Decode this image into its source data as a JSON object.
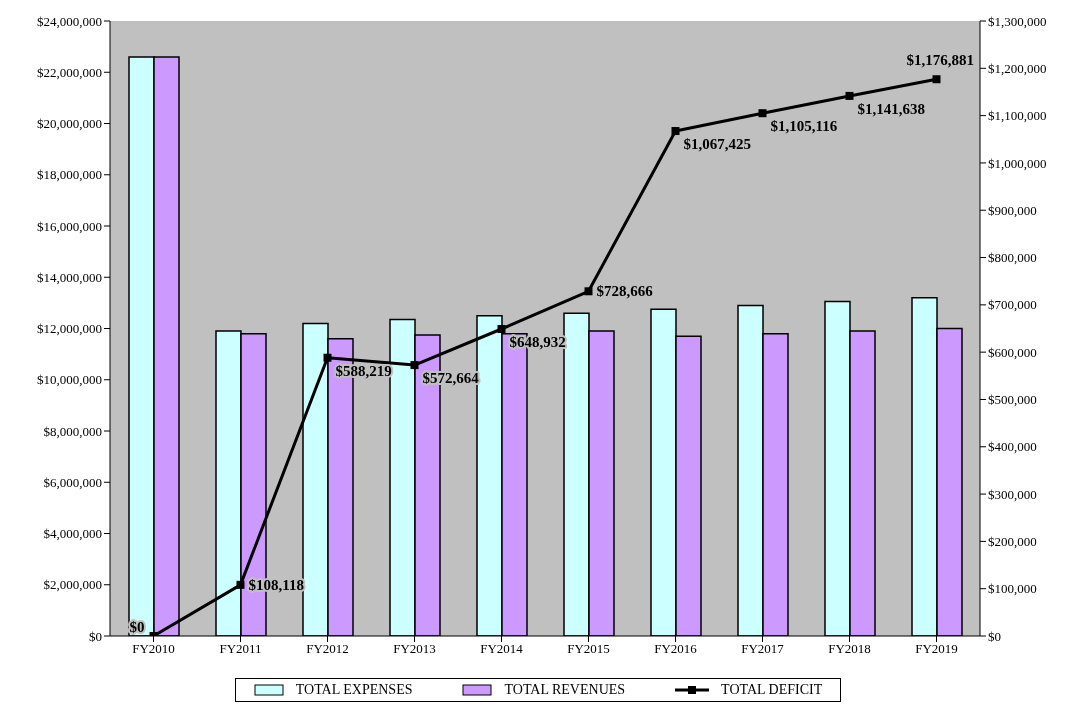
{
  "chart_data": {
    "type": "bar",
    "categories": [
      "FY2010",
      "FY2011",
      "FY2012",
      "FY2013",
      "FY2014",
      "FY2015",
      "FY2016",
      "FY2017",
      "FY2018",
      "FY2019"
    ],
    "series": [
      {
        "name": "TOTAL EXPENSES",
        "color": "#ccffff",
        "values": [
          22600000,
          11900000,
          12200000,
          12350000,
          12500000,
          12600000,
          12750000,
          12900000,
          13050000,
          13200000
        ]
      },
      {
        "name": "TOTAL REVENUES",
        "color": "#cc99ff",
        "values": [
          22600000,
          11800000,
          11600000,
          11750000,
          11800000,
          11900000,
          11700000,
          11800000,
          11900000,
          12000000
        ]
      },
      {
        "name": "TOTAL DEFICIT",
        "type": "line",
        "axis": "y2",
        "color": "#000000",
        "marker": "square",
        "values": [
          0,
          108118,
          588219,
          572664,
          648932,
          728666,
          1067425,
          1105116,
          1141638,
          1176881
        ],
        "value_labels": [
          "$0",
          "$108,118",
          "$588,219",
          "$572,664",
          "$648,932",
          "$728,666",
          "$1,067,425",
          "$1,105,116",
          "$1,141,638",
          "$1,176,881"
        ]
      }
    ],
    "ylim": [
      0,
      24000000
    ],
    "yticks": [
      {
        "value": 0,
        "label": "$0"
      },
      {
        "value": 2000000,
        "label": "$2,000,000"
      },
      {
        "value": 4000000,
        "label": "$4,000,000"
      },
      {
        "value": 6000000,
        "label": "$6,000,000"
      },
      {
        "value": 8000000,
        "label": "$8,000,000"
      },
      {
        "value": 10000000,
        "label": "$10,000,000"
      },
      {
        "value": 12000000,
        "label": "$12,000,000"
      },
      {
        "value": 14000000,
        "label": "$14,000,000"
      },
      {
        "value": 16000000,
        "label": "$16,000,000"
      },
      {
        "value": 18000000,
        "label": "$18,000,000"
      },
      {
        "value": 20000000,
        "label": "$20,000,000"
      },
      {
        "value": 22000000,
        "label": "$22,000,000"
      },
      {
        "value": 24000000,
        "label": "$24,000,000"
      }
    ],
    "y2lim": [
      0,
      1300000
    ],
    "y2ticks": [
      {
        "value": 0,
        "label": "$0"
      },
      {
        "value": 100000,
        "label": "$100,000"
      },
      {
        "value": 200000,
        "label": "$200,000"
      },
      {
        "value": 300000,
        "label": "$300,000"
      },
      {
        "value": 400000,
        "label": "$400,000"
      },
      {
        "value": 500000,
        "label": "$500,000"
      },
      {
        "value": 600000,
        "label": "$600,000"
      },
      {
        "value": 700000,
        "label": "$700,000"
      },
      {
        "value": 800000,
        "label": "$800,000"
      },
      {
        "value": 900000,
        "label": "$900,000"
      },
      {
        "value": 1000000,
        "label": "$1,000,000"
      },
      {
        "value": 1100000,
        "label": "$1,100,000"
      },
      {
        "value": 1200000,
        "label": "$1,200,000"
      },
      {
        "value": 1300000,
        "label": "$1,300,000"
      }
    ],
    "grid": false,
    "legend": "bottom"
  }
}
